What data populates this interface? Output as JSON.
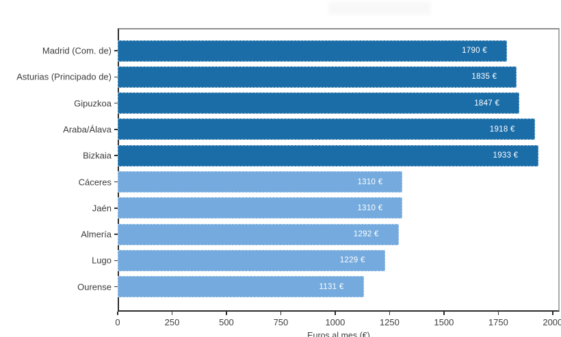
{
  "chart_data": {
    "type": "bar",
    "orientation": "horizontal",
    "title": "",
    "xlabel": "Euros al mes (€)",
    "ylabel": "",
    "categories": [
      "Madrid (Com. de)",
      "Asturias (Principado de)",
      "Gipuzkoa",
      "Araba/Álava",
      "Bizkaia",
      "Cáceres",
      "Jaén",
      "Almería",
      "Lugo",
      "Ourense"
    ],
    "values": [
      1790,
      1835,
      1847,
      1918,
      1933,
      1310,
      1310,
      1292,
      1229,
      1131
    ],
    "value_labels": [
      "1790 €",
      "1835 €",
      "1847 €",
      "1918 €",
      "1933 €",
      "1310 €",
      "1310 €",
      "1292 €",
      "1229 €",
      "1131 €"
    ],
    "groups": [
      "dark",
      "dark",
      "dark",
      "dark",
      "dark",
      "light",
      "light",
      "light",
      "light",
      "light"
    ],
    "group_colors": {
      "dark": "#1b6da7",
      "light": "#74aadd"
    },
    "x_ticks": [
      "0",
      "250",
      "500",
      "750",
      "1000",
      "1250",
      "1500",
      "1750",
      "2000"
    ],
    "x_tick_values": [
      0,
      250,
      500,
      750,
      1000,
      1250,
      1500,
      1750,
      2000
    ],
    "xlim": [
      0,
      2032
    ],
    "grid": false,
    "legend": "none",
    "value_label_color": "#ffffff"
  }
}
